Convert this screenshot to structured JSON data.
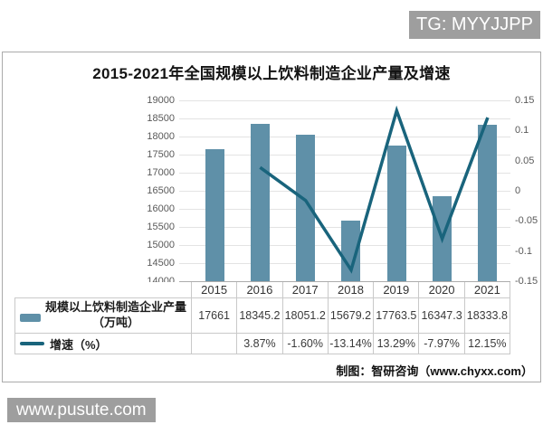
{
  "badge": {
    "tg_label": "TG: MYYJJPP"
  },
  "watermark": {
    "site_label": "www.pusute.com"
  },
  "chart": {
    "title": "2015-2021年全国规模以上饮料制造企业产量及增速",
    "source_note": "制图：智研咨询（www.chyxx.com）",
    "left_axis": {
      "ticks": [
        "19000",
        "18500",
        "18000",
        "17500",
        "17000",
        "16500",
        "16000",
        "15500",
        "15000",
        "14500",
        "14000"
      ]
    },
    "right_axis": {
      "ticks": [
        "0.15",
        "0.1",
        "0.05",
        "0",
        "-0.05",
        "-0.1",
        "-0.15"
      ]
    }
  },
  "chart_data": {
    "type": "bar",
    "title": "2015-2021年全国规模以上饮料制造企业产量及增速",
    "categories": [
      "2015",
      "2016",
      "2017",
      "2018",
      "2019",
      "2020",
      "2021"
    ],
    "series": [
      {
        "name": "规模以上饮料制造企业产量（万吨）",
        "type": "bar",
        "axis": "left",
        "color": "#5F90A8",
        "values": [
          17661,
          18345.2,
          18051.2,
          15679.2,
          17763.5,
          16347.3,
          18333.8
        ]
      },
      {
        "name": "增速（%）",
        "type": "line",
        "axis": "right",
        "color": "#19647C",
        "values": [
          null,
          0.0387,
          -0.016,
          -0.1314,
          0.1329,
          -0.0797,
          0.1215
        ]
      }
    ],
    "left_ylim": [
      14000,
      19000
    ],
    "right_ylim": [
      -0.15,
      0.15
    ],
    "grid": true,
    "legend_position": "table-left"
  },
  "table": {
    "years": [
      "2015",
      "2016",
      "2017",
      "2018",
      "2019",
      "2020",
      "2021"
    ],
    "production_label_line1": "规模以上饮料制造企业产量",
    "production_label_line2": "（万吨）",
    "production_values": [
      "17661",
      "18345.2",
      "18051.2",
      "15679.2",
      "17763.5",
      "16347.3",
      "18333.8"
    ],
    "growth_label": "增速（%）",
    "growth_values": [
      "",
      "3.87%",
      "-1.60%",
      "-13.14%",
      "13.29%",
      "-7.97%",
      "12.15%"
    ]
  }
}
